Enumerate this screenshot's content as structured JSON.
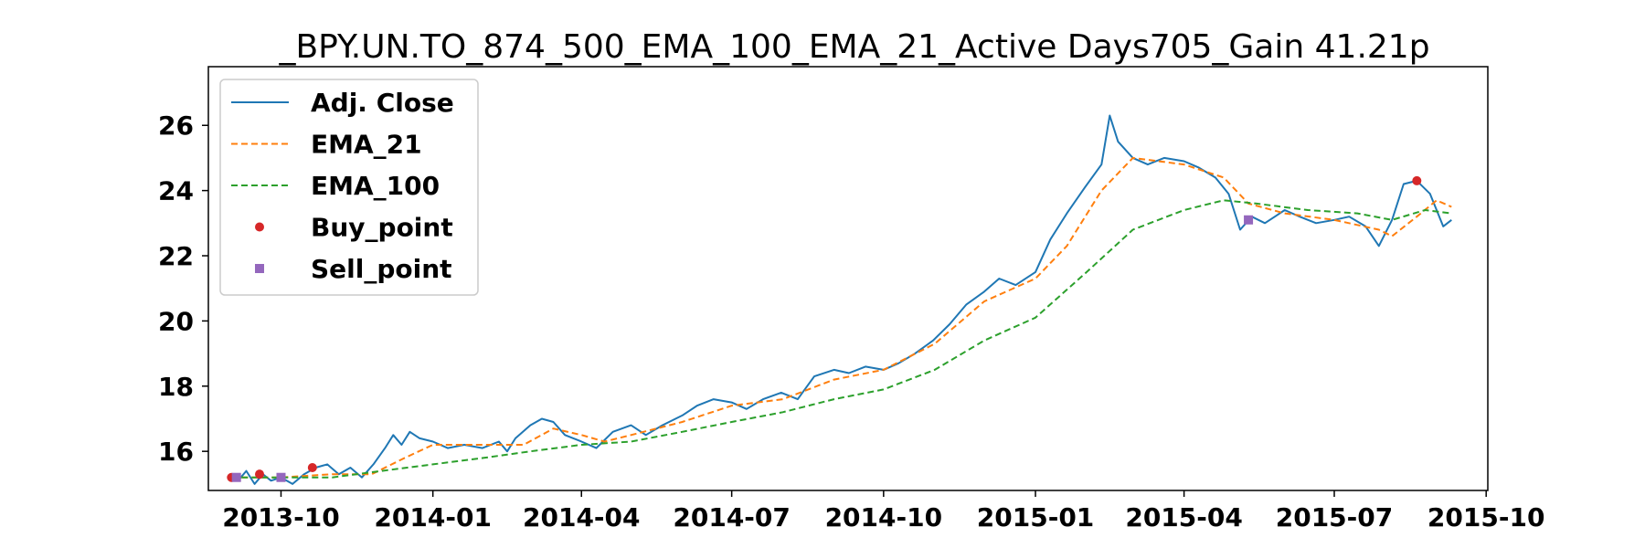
{
  "chart_data": {
    "type": "line",
    "title": "_BPY.UN.TO_874_500_EMA_100_EMA_21_Active Days705_Gain  41.21p",
    "xlabel": "",
    "ylabel": "",
    "x_ticks": [
      "2013-10",
      "2014-01",
      "2014-04",
      "2014-07",
      "2014-10",
      "2015-01",
      "2015-04",
      "2015-07",
      "2015-10"
    ],
    "y_ticks": [
      "16",
      "18",
      "20",
      "22",
      "24",
      "26"
    ],
    "xlim": [
      "2013-08-18",
      "2015-10-02"
    ],
    "ylim": [
      14.8,
      27.8
    ],
    "legend_position": "upper-left",
    "series": [
      {
        "name": "Adj. Close",
        "color": "#1f77b4",
        "style": "solid",
        "points": [
          [
            "2013-09-01",
            15.2
          ],
          [
            "2013-09-05",
            15.1
          ],
          [
            "2013-09-10",
            15.4
          ],
          [
            "2013-09-15",
            15.0
          ],
          [
            "2013-09-20",
            15.3
          ],
          [
            "2013-09-25",
            15.1
          ],
          [
            "2013-10-01",
            15.2
          ],
          [
            "2013-10-08",
            15.0
          ],
          [
            "2013-10-15",
            15.3
          ],
          [
            "2013-10-22",
            15.5
          ],
          [
            "2013-10-29",
            15.6
          ],
          [
            "2013-11-05",
            15.3
          ],
          [
            "2013-11-12",
            15.5
          ],
          [
            "2013-11-19",
            15.2
          ],
          [
            "2013-11-26",
            15.6
          ],
          [
            "2013-12-03",
            16.1
          ],
          [
            "2013-12-08",
            16.5
          ],
          [
            "2013-12-13",
            16.2
          ],
          [
            "2013-12-18",
            16.6
          ],
          [
            "2013-12-24",
            16.4
          ],
          [
            "2014-01-01",
            16.3
          ],
          [
            "2014-01-10",
            16.1
          ],
          [
            "2014-01-20",
            16.2
          ],
          [
            "2014-01-31",
            16.1
          ],
          [
            "2014-02-10",
            16.3
          ],
          [
            "2014-02-15",
            16.0
          ],
          [
            "2014-02-20",
            16.4
          ],
          [
            "2014-03-01",
            16.8
          ],
          [
            "2014-03-08",
            17.0
          ],
          [
            "2014-03-15",
            16.9
          ],
          [
            "2014-03-22",
            16.5
          ],
          [
            "2014-04-01",
            16.3
          ],
          [
            "2014-04-10",
            16.1
          ],
          [
            "2014-04-20",
            16.6
          ],
          [
            "2014-05-01",
            16.8
          ],
          [
            "2014-05-10",
            16.5
          ],
          [
            "2014-05-20",
            16.8
          ],
          [
            "2014-06-01",
            17.1
          ],
          [
            "2014-06-10",
            17.4
          ],
          [
            "2014-06-20",
            17.6
          ],
          [
            "2014-07-01",
            17.5
          ],
          [
            "2014-07-10",
            17.3
          ],
          [
            "2014-07-20",
            17.6
          ],
          [
            "2014-07-31",
            17.8
          ],
          [
            "2014-08-10",
            17.6
          ],
          [
            "2014-08-20",
            18.3
          ],
          [
            "2014-09-01",
            18.5
          ],
          [
            "2014-09-10",
            18.4
          ],
          [
            "2014-09-20",
            18.6
          ],
          [
            "2014-10-01",
            18.5
          ],
          [
            "2014-10-10",
            18.7
          ],
          [
            "2014-10-20",
            19.0
          ],
          [
            "2014-10-31",
            19.4
          ],
          [
            "2014-11-10",
            19.9
          ],
          [
            "2014-11-20",
            20.5
          ],
          [
            "2014-12-01",
            20.9
          ],
          [
            "2014-12-10",
            21.3
          ],
          [
            "2014-12-20",
            21.1
          ],
          [
            "2015-01-01",
            21.5
          ],
          [
            "2015-01-10",
            22.5
          ],
          [
            "2015-01-20",
            23.3
          ],
          [
            "2015-01-31",
            24.1
          ],
          [
            "2015-02-10",
            24.8
          ],
          [
            "2015-02-15",
            26.3
          ],
          [
            "2015-02-20",
            25.5
          ],
          [
            "2015-03-01",
            25.0
          ],
          [
            "2015-03-10",
            24.8
          ],
          [
            "2015-03-20",
            25.0
          ],
          [
            "2015-04-01",
            24.9
          ],
          [
            "2015-04-10",
            24.7
          ],
          [
            "2015-04-20",
            24.4
          ],
          [
            "2015-04-28",
            23.9
          ],
          [
            "2015-05-05",
            22.8
          ],
          [
            "2015-05-12",
            23.2
          ],
          [
            "2015-05-20",
            23.0
          ],
          [
            "2015-06-01",
            23.4
          ],
          [
            "2015-06-10",
            23.2
          ],
          [
            "2015-06-20",
            23.0
          ],
          [
            "2015-07-01",
            23.1
          ],
          [
            "2015-07-10",
            23.2
          ],
          [
            "2015-07-20",
            22.9
          ],
          [
            "2015-07-28",
            22.3
          ],
          [
            "2015-08-05",
            23.1
          ],
          [
            "2015-08-12",
            24.2
          ],
          [
            "2015-08-20",
            24.3
          ],
          [
            "2015-08-28",
            23.9
          ],
          [
            "2015-09-05",
            22.9
          ],
          [
            "2015-09-10",
            23.1
          ]
        ]
      },
      {
        "name": "EMA_21",
        "color": "#ff7f0e",
        "style": "dashed",
        "points": [
          [
            "2013-09-01",
            15.2
          ],
          [
            "2013-10-01",
            15.2
          ],
          [
            "2013-11-01",
            15.3
          ],
          [
            "2013-11-25",
            15.3
          ],
          [
            "2013-12-15",
            15.8
          ],
          [
            "2014-01-01",
            16.2
          ],
          [
            "2014-01-31",
            16.2
          ],
          [
            "2014-02-25",
            16.2
          ],
          [
            "2014-03-15",
            16.7
          ],
          [
            "2014-04-01",
            16.5
          ],
          [
            "2014-04-15",
            16.3
          ],
          [
            "2014-05-01",
            16.5
          ],
          [
            "2014-06-01",
            16.9
          ],
          [
            "2014-07-01",
            17.4
          ],
          [
            "2014-08-01",
            17.6
          ],
          [
            "2014-09-01",
            18.2
          ],
          [
            "2014-10-01",
            18.5
          ],
          [
            "2014-11-01",
            19.3
          ],
          [
            "2014-12-01",
            20.6
          ],
          [
            "2015-01-01",
            21.3
          ],
          [
            "2015-01-20",
            22.3
          ],
          [
            "2015-02-10",
            24.0
          ],
          [
            "2015-03-01",
            25.0
          ],
          [
            "2015-04-01",
            24.8
          ],
          [
            "2015-04-25",
            24.4
          ],
          [
            "2015-05-10",
            23.6
          ],
          [
            "2015-06-01",
            23.3
          ],
          [
            "2015-07-01",
            23.1
          ],
          [
            "2015-07-28",
            22.8
          ],
          [
            "2015-08-05",
            22.6
          ],
          [
            "2015-08-20",
            23.2
          ],
          [
            "2015-09-01",
            23.7
          ],
          [
            "2015-09-10",
            23.5
          ]
        ]
      },
      {
        "name": "EMA_100",
        "color": "#2ca02c",
        "style": "dashed",
        "points": [
          [
            "2013-09-01",
            15.2
          ],
          [
            "2013-11-01",
            15.2
          ],
          [
            "2013-12-01",
            15.4
          ],
          [
            "2014-01-01",
            15.6
          ],
          [
            "2014-02-01",
            15.8
          ],
          [
            "2014-03-01",
            16.0
          ],
          [
            "2014-04-01",
            16.2
          ],
          [
            "2014-05-01",
            16.3
          ],
          [
            "2014-06-01",
            16.6
          ],
          [
            "2014-07-01",
            16.9
          ],
          [
            "2014-08-01",
            17.2
          ],
          [
            "2014-09-01",
            17.6
          ],
          [
            "2014-10-01",
            17.9
          ],
          [
            "2014-11-01",
            18.5
          ],
          [
            "2014-12-01",
            19.4
          ],
          [
            "2015-01-01",
            20.1
          ],
          [
            "2015-02-01",
            21.5
          ],
          [
            "2015-03-01",
            22.8
          ],
          [
            "2015-04-01",
            23.4
          ],
          [
            "2015-04-25",
            23.7
          ],
          [
            "2015-05-15",
            23.6
          ],
          [
            "2015-06-15",
            23.4
          ],
          [
            "2015-07-15",
            23.3
          ],
          [
            "2015-08-05",
            23.1
          ],
          [
            "2015-08-25",
            23.4
          ],
          [
            "2015-09-10",
            23.3
          ]
        ]
      }
    ],
    "markers": [
      {
        "name": "Buy_point",
        "color": "#d62728",
        "shape": "circle",
        "points": [
          [
            "2013-09-01",
            15.2
          ],
          [
            "2013-09-18",
            15.3
          ],
          [
            "2013-10-20",
            15.5
          ],
          [
            "2015-08-20",
            24.3
          ]
        ]
      },
      {
        "name": "Sell_point",
        "color": "#9467bd",
        "shape": "square",
        "points": [
          [
            "2013-09-04",
            15.2
          ],
          [
            "2013-10-01",
            15.2
          ],
          [
            "2015-05-10",
            23.1
          ]
        ]
      }
    ]
  }
}
